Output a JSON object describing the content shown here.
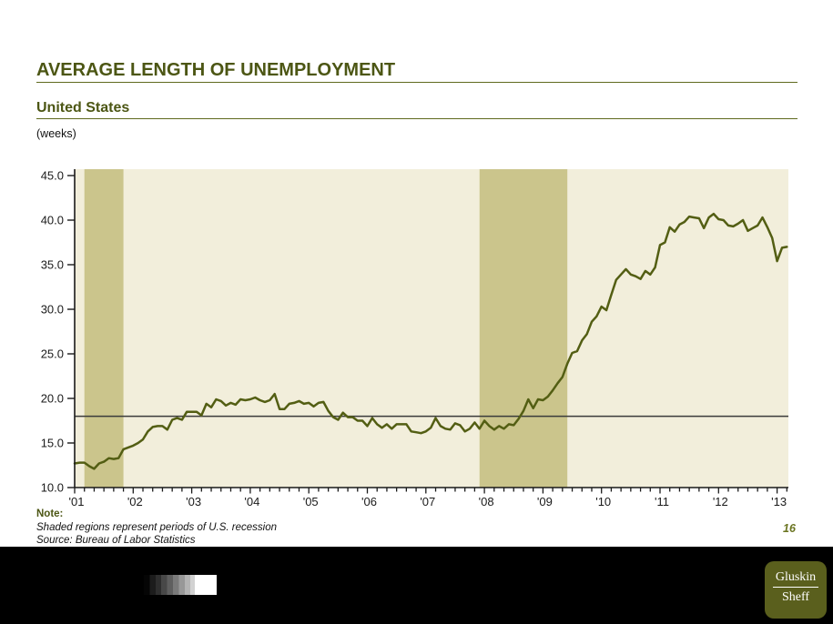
{
  "header": {
    "title": "AVERAGE LENGTH OF UNEMPLOYMENT",
    "subtitle": "United States",
    "units": "(weeks)"
  },
  "note": {
    "label": "Note:",
    "line1": "Shaded regions represent periods of U.S. recession",
    "line2": "Source: Bureau of Labor Statistics"
  },
  "page_number": "16",
  "footer": {
    "logo_line1": "Gluskin",
    "logo_line2": "Sheff"
  },
  "colors": {
    "accent_olive": "#4c5614",
    "plot_bg": "#f2eedb",
    "recession_band": "#cbc58c",
    "line": "#535e13",
    "ref_line": "#3a3a3a",
    "axis": "#1a1a1a",
    "footer_bg": "#000000",
    "logo_bg": "#5a5f1d"
  },
  "chart_data": {
    "type": "line",
    "title": "AVERAGE LENGTH OF UNEMPLOYMENT",
    "subtitle": "United States",
    "ylabel": "weeks",
    "x_unit": "month",
    "x_start": "2001-01",
    "x_end": "2013-03",
    "x_tick_labels": [
      "'01",
      "'02",
      "'03",
      "'04",
      "'05",
      "'06",
      "'07",
      "'08",
      "'09",
      "'10",
      "'11",
      "'12",
      "'13"
    ],
    "y_ticks": [
      10,
      15,
      20,
      25,
      30,
      35,
      40,
      45
    ],
    "y_tick_labels": [
      "10.0",
      "15.0",
      "20.0",
      "25.0",
      "30.0",
      "35.0",
      "40.0",
      "45.0"
    ],
    "ylim": [
      10,
      45.8
    ],
    "grid": "off",
    "legend": "none",
    "reference_line": 18.0,
    "recession_bands": [
      {
        "from": "2001-03",
        "to": "2001-11"
      },
      {
        "from": "2007-12",
        "to": "2009-06"
      }
    ],
    "series": [
      {
        "name": "Average length of unemployment (weeks)",
        "values": [
          12.7,
          12.8,
          12.8,
          12.4,
          12.1,
          12.7,
          12.9,
          13.3,
          13.2,
          13.3,
          14.3,
          14.5,
          14.7,
          15.0,
          15.4,
          16.3,
          16.8,
          16.9,
          16.9,
          16.5,
          17.6,
          17.8,
          17.6,
          18.5,
          18.5,
          18.5,
          18.1,
          19.4,
          19.0,
          19.9,
          19.7,
          19.2,
          19.5,
          19.3,
          19.9,
          19.8,
          19.9,
          20.1,
          19.8,
          19.6,
          19.8,
          20.5,
          18.8,
          18.8,
          19.4,
          19.5,
          19.7,
          19.4,
          19.5,
          19.1,
          19.5,
          19.6,
          18.6,
          17.9,
          17.6,
          18.4,
          17.9,
          17.9,
          17.5,
          17.5,
          16.9,
          17.8,
          17.1,
          16.7,
          17.1,
          16.6,
          17.1,
          17.1,
          17.1,
          16.3,
          16.2,
          16.1,
          16.3,
          16.7,
          17.8,
          16.9,
          16.6,
          16.5,
          17.2,
          17.0,
          16.3,
          16.6,
          17.3,
          16.6,
          17.5,
          16.9,
          16.5,
          16.9,
          16.6,
          17.1,
          17.0,
          17.7,
          18.6,
          19.9,
          18.9,
          19.9,
          19.8,
          20.2,
          20.9,
          21.7,
          22.4,
          23.9,
          25.1,
          25.3,
          26.5,
          27.2,
          28.6,
          29.2,
          30.3,
          29.9,
          31.6,
          33.3,
          33.9,
          34.5,
          33.9,
          33.7,
          33.4,
          34.3,
          33.9,
          34.7,
          37.2,
          37.5,
          39.2,
          38.7,
          39.5,
          39.8,
          40.4,
          40.3,
          40.2,
          39.1,
          40.3,
          40.7,
          40.1,
          40.0,
          39.4,
          39.3,
          39.6,
          40.0,
          38.8,
          39.1,
          39.4,
          40.3,
          39.2,
          38.0,
          35.4,
          36.9,
          37.0
        ]
      }
    ]
  }
}
